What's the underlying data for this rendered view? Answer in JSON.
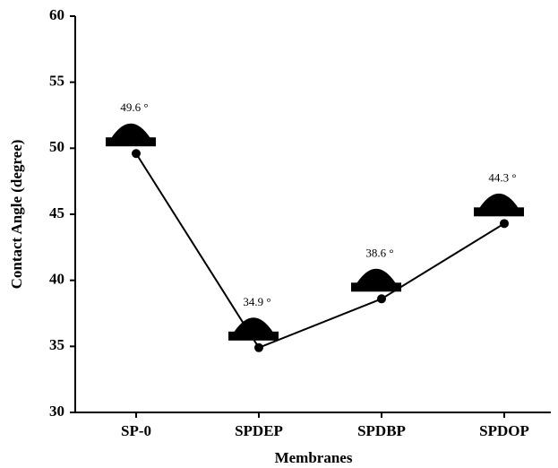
{
  "chart_data": {
    "type": "line",
    "x_label": "Membranes",
    "y_label": "Contact Angle (degree)",
    "categories": [
      "SP-0",
      "SPDEP",
      "SPDBP",
      "SPDOP"
    ],
    "values": [
      49.6,
      34.9,
      38.6,
      44.3
    ],
    "value_labels": [
      "49.6 °",
      "34.9 °",
      "38.6 °",
      "44.3 °"
    ],
    "color": "#000000",
    "ylim": [
      30,
      60
    ],
    "yticks": [
      30,
      35,
      40,
      45,
      50,
      55,
      60
    ]
  }
}
